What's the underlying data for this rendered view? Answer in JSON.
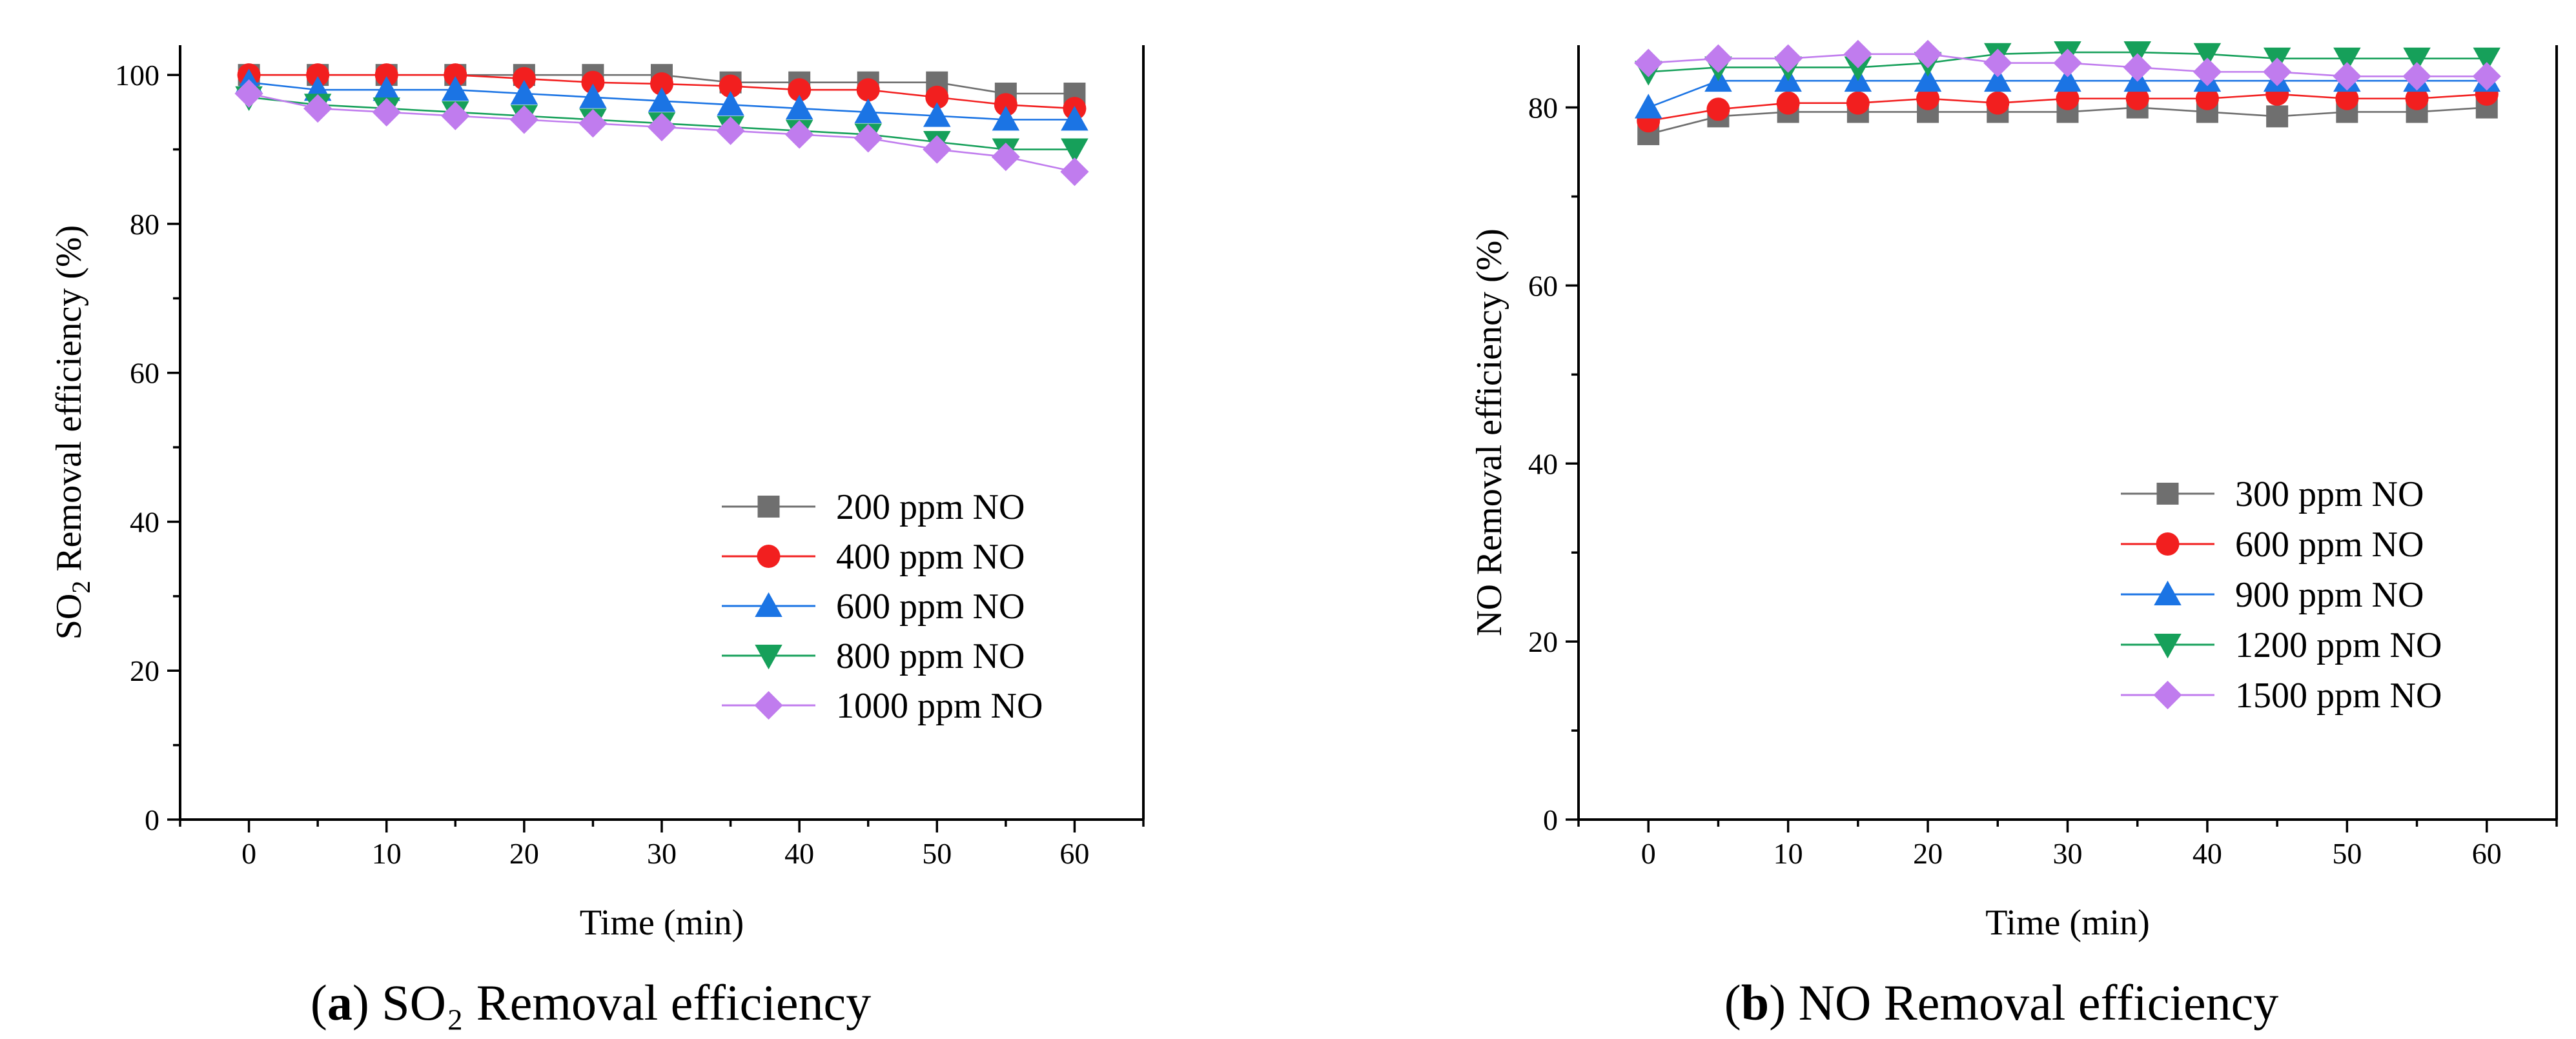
{
  "colors": {
    "gray": "#6f6f6f",
    "red": "#f21f1f",
    "blue": "#1b74e4",
    "green": "#16a05a",
    "violet": "#c07cee"
  },
  "chart_data": [
    {
      "type": "line",
      "panel": "a",
      "caption_label": "a",
      "caption_rest": "SO₂ Removal efficiency",
      "title": "",
      "xlabel": "Time (min)",
      "ylabel_prefix": "SO",
      "ylabel_sub": "2",
      "ylabel_suffix": " Removal efficiency (%)",
      "x": [
        0,
        5,
        10,
        15,
        20,
        25,
        30,
        35,
        40,
        45,
        50,
        55,
        60
      ],
      "xlim": [
        -5,
        65
      ],
      "ylim": [
        0,
        104
      ],
      "xticks": [
        0,
        10,
        20,
        30,
        40,
        50,
        60
      ],
      "yticks": [
        0,
        20,
        40,
        60,
        80,
        100
      ],
      "xtick_labels": [
        "0",
        "10",
        "20",
        "30",
        "40",
        "50",
        "60"
      ],
      "ytick_labels": [
        "0",
        "20",
        "40",
        "60",
        "80",
        "100"
      ],
      "legend_position": "lower-right",
      "series": [
        {
          "name": "200 ppm NO",
          "marker": "square",
          "color_key": "gray",
          "values": [
            100,
            100,
            100,
            100,
            100,
            100,
            100,
            99,
            99,
            99,
            99,
            97.5,
            97.5
          ]
        },
        {
          "name": "400 ppm NO",
          "marker": "circle",
          "color_key": "red",
          "values": [
            100,
            100,
            100,
            100,
            99.5,
            99,
            98.8,
            98.5,
            98,
            98,
            97,
            96,
            95.5
          ]
        },
        {
          "name": "600 ppm NO",
          "marker": "triangle-up",
          "color_key": "blue",
          "values": [
            99,
            98,
            98,
            98,
            97.5,
            97,
            96.5,
            96,
            95.5,
            95,
            94.5,
            94,
            94
          ]
        },
        {
          "name": "800 ppm NO",
          "marker": "triangle-down",
          "color_key": "green",
          "values": [
            97,
            96,
            95.5,
            95,
            94.5,
            94,
            93.5,
            93,
            92.5,
            92,
            91,
            90,
            90
          ]
        },
        {
          "name": "1000 ppm NO",
          "marker": "diamond",
          "color_key": "violet",
          "values": [
            97.5,
            95.5,
            95,
            94.5,
            94,
            93.5,
            93,
            92.5,
            92,
            91.5,
            90,
            89,
            87
          ]
        }
      ]
    },
    {
      "type": "line",
      "panel": "b",
      "caption_label": "b",
      "caption_rest": "NO Removal efficiency",
      "title": "",
      "xlabel": "Time (min)",
      "ylabel_prefix": "NO Removal efficiency (%)",
      "ylabel_sub": "",
      "ylabel_suffix": "",
      "x": [
        0,
        5,
        10,
        15,
        20,
        25,
        30,
        35,
        40,
        45,
        50,
        55,
        60
      ],
      "xlim": [
        -5,
        65
      ],
      "ylim": [
        0,
        87
      ],
      "xticks": [
        0,
        10,
        20,
        30,
        40,
        50,
        60
      ],
      "yticks": [
        0,
        20,
        40,
        60,
        80
      ],
      "xtick_labels": [
        "0",
        "10",
        "20",
        "30",
        "40",
        "50",
        "60"
      ],
      "ytick_labels": [
        "0",
        "20",
        "40",
        "60",
        "80"
      ],
      "legend_position": "center-right",
      "series": [
        {
          "name": "300 ppm NO",
          "marker": "square",
          "color_key": "gray",
          "values": [
            77,
            79,
            79.5,
            79.5,
            79.5,
            79.5,
            79.5,
            80,
            79.5,
            79,
            79.5,
            79.5,
            80
          ]
        },
        {
          "name": "600 ppm NO",
          "marker": "circle",
          "color_key": "red",
          "values": [
            78.5,
            79.8,
            80.5,
            80.5,
            81,
            80.5,
            81,
            81,
            81,
            81.5,
            81,
            81,
            81.5
          ]
        },
        {
          "name": "900 ppm NO",
          "marker": "triangle-up",
          "color_key": "blue",
          "values": [
            80,
            83,
            83,
            83,
            83,
            83,
            83,
            83,
            83,
            83,
            83,
            83,
            83
          ]
        },
        {
          "name": "1200 ppm NO",
          "marker": "triangle-down",
          "color_key": "green",
          "values": [
            84,
            84.5,
            84.5,
            84.5,
            85,
            86,
            86.2,
            86.2,
            86,
            85.5,
            85.5,
            85.5,
            85.5
          ]
        },
        {
          "name": "1500 ppm NO",
          "marker": "diamond",
          "color_key": "violet",
          "values": [
            85,
            85.5,
            85.5,
            86,
            86,
            85,
            85,
            84.5,
            84,
            84,
            83.5,
            83.5,
            83.5
          ]
        }
      ]
    }
  ]
}
